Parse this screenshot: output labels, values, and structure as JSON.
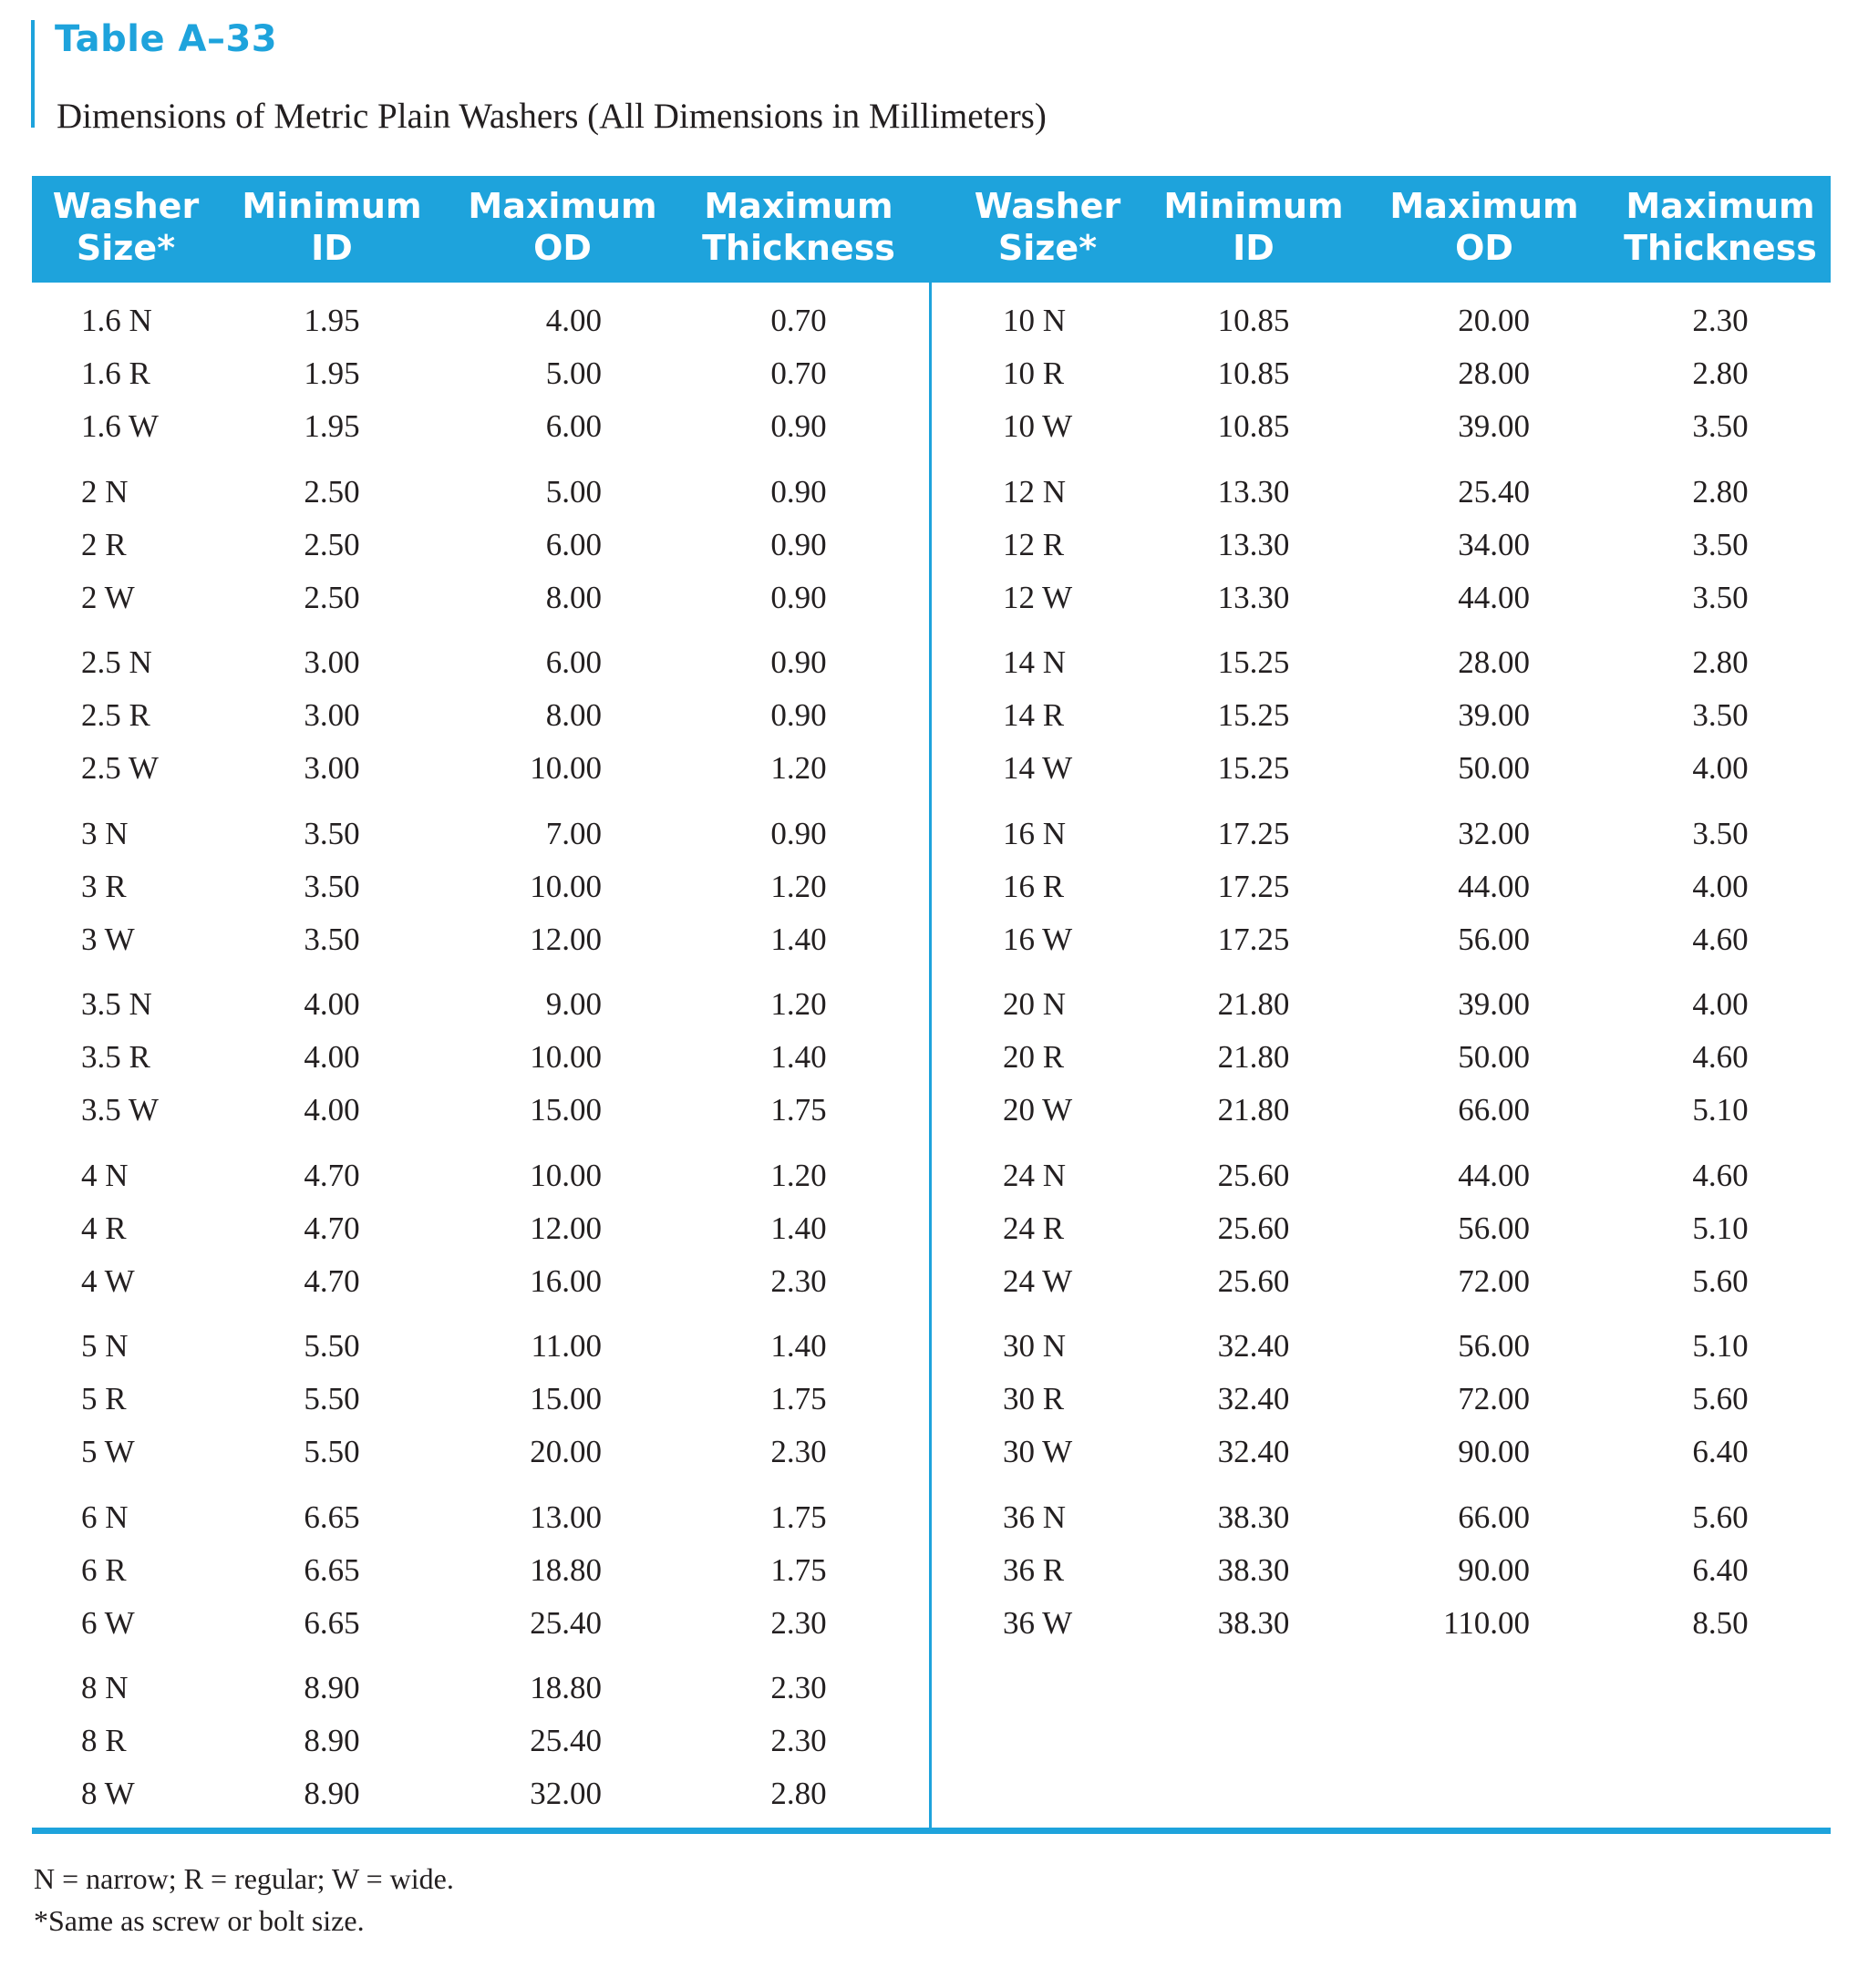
{
  "table_label": "Table A–33",
  "caption": "Dimensions of Metric Plain Washers (All Dimensions in Millimeters)",
  "headers": [
    "Washer\nSize*",
    "Minimum\nID",
    "Maximum\nOD",
    "Maximum\nThickness",
    "Washer\nSize*",
    "Minimum\nID",
    "Maximum\nOD",
    "Maximum\nThickness"
  ],
  "left_rows": [
    [
      "1.6 N",
      "1.95",
      "4.00",
      "0.70"
    ],
    [
      "1.6 R",
      "1.95",
      "5.00",
      "0.70"
    ],
    [
      "1.6 W",
      "1.95",
      "6.00",
      "0.90"
    ],
    [
      "2 N",
      "2.50",
      "5.00",
      "0.90"
    ],
    [
      "2 R",
      "2.50",
      "6.00",
      "0.90"
    ],
    [
      "2 W",
      "2.50",
      "8.00",
      "0.90"
    ],
    [
      "2.5 N",
      "3.00",
      "6.00",
      "0.90"
    ],
    [
      "2.5 R",
      "3.00",
      "8.00",
      "0.90"
    ],
    [
      "2.5 W",
      "3.00",
      "10.00",
      "1.20"
    ],
    [
      "3 N",
      "3.50",
      "7.00",
      "0.90"
    ],
    [
      "3 R",
      "3.50",
      "10.00",
      "1.20"
    ],
    [
      "3 W",
      "3.50",
      "12.00",
      "1.40"
    ],
    [
      "3.5 N",
      "4.00",
      "9.00",
      "1.20"
    ],
    [
      "3.5 R",
      "4.00",
      "10.00",
      "1.40"
    ],
    [
      "3.5 W",
      "4.00",
      "15.00",
      "1.75"
    ],
    [
      "4 N",
      "4.70",
      "10.00",
      "1.20"
    ],
    [
      "4 R",
      "4.70",
      "12.00",
      "1.40"
    ],
    [
      "4 W",
      "4.70",
      "16.00",
      "2.30"
    ],
    [
      "5 N",
      "5.50",
      "11.00",
      "1.40"
    ],
    [
      "5 R",
      "5.50",
      "15.00",
      "1.75"
    ],
    [
      "5 W",
      "5.50",
      "20.00",
      "2.30"
    ],
    [
      "6 N",
      "6.65",
      "13.00",
      "1.75"
    ],
    [
      "6 R",
      "6.65",
      "18.80",
      "1.75"
    ],
    [
      "6 W",
      "6.65",
      "25.40",
      "2.30"
    ],
    [
      "8 N",
      "8.90",
      "18.80",
      "2.30"
    ],
    [
      "8 R",
      "8.90",
      "25.40",
      "2.30"
    ],
    [
      "8 W",
      "8.90",
      "32.00",
      "2.80"
    ]
  ],
  "right_rows": [
    [
      "10 N",
      "10.85",
      "20.00",
      "2.30"
    ],
    [
      "10 R",
      "10.85",
      "28.00",
      "2.80"
    ],
    [
      "10 W",
      "10.85",
      "39.00",
      "3.50"
    ],
    [
      "12 N",
      "13.30",
      "25.40",
      "2.80"
    ],
    [
      "12 R",
      "13.30",
      "34.00",
      "3.50"
    ],
    [
      "12 W",
      "13.30",
      "44.00",
      "3.50"
    ],
    [
      "14 N",
      "15.25",
      "28.00",
      "2.80"
    ],
    [
      "14 R",
      "15.25",
      "39.00",
      "3.50"
    ],
    [
      "14 W",
      "15.25",
      "50.00",
      "4.00"
    ],
    [
      "16 N",
      "17.25",
      "32.00",
      "3.50"
    ],
    [
      "16 R",
      "17.25",
      "44.00",
      "4.00"
    ],
    [
      "16 W",
      "17.25",
      "56.00",
      "4.60"
    ],
    [
      "20 N",
      "21.80",
      "39.00",
      "4.00"
    ],
    [
      "20 R",
      "21.80",
      "50.00",
      "4.60"
    ],
    [
      "20 W",
      "21.80",
      "66.00",
      "5.10"
    ],
    [
      "24 N",
      "25.60",
      "44.00",
      "4.60"
    ],
    [
      "24 R",
      "25.60",
      "56.00",
      "5.10"
    ],
    [
      "24 W",
      "25.60",
      "72.00",
      "5.60"
    ],
    [
      "30 N",
      "32.40",
      "56.00",
      "5.10"
    ],
    [
      "30 R",
      "32.40",
      "72.00",
      "5.60"
    ],
    [
      "30 W",
      "32.40",
      "90.00",
      "6.40"
    ],
    [
      "36 N",
      "38.30",
      "66.00",
      "5.60"
    ],
    [
      "36 R",
      "38.30",
      "90.00",
      "6.40"
    ],
    [
      "36 W",
      "38.30",
      "110.00",
      "8.50"
    ]
  ],
  "notes": [
    "N = narrow; R = regular; W = wide.",
    "*Same as screw or bolt size."
  ],
  "colors": {
    "accent": "#1ea3dc",
    "text": "#231f20"
  }
}
